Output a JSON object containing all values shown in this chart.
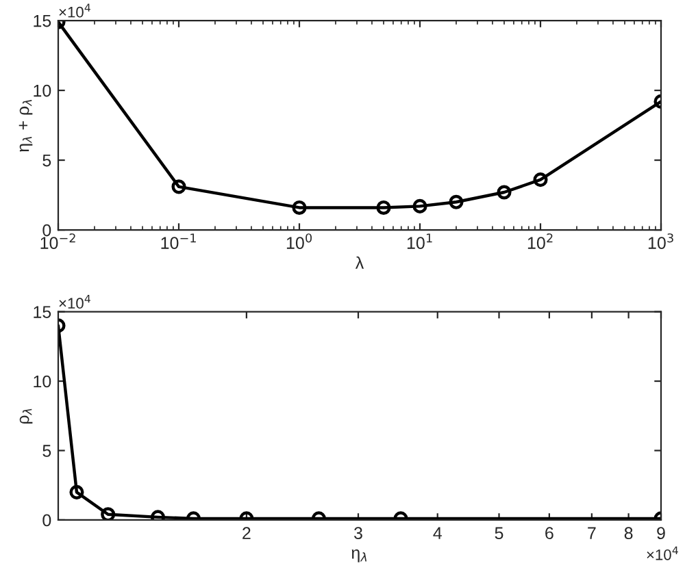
{
  "chart_data": [
    {
      "type": "line",
      "xlabel": "λ",
      "ylabel": "η$_{λ}$ + ρ$_{λ}$",
      "log": "x",
      "marker": "circle",
      "line_style": "solid",
      "grid": false,
      "legend": false,
      "annotations": [
        "×10$^{4}$"
      ],
      "x": [
        0.01,
        0.1,
        1,
        5,
        10,
        20,
        50,
        100,
        1000
      ],
      "series": [
        {
          "color": "#000000",
          "values": [
            14.9,
            3.1,
            1.6,
            1.6,
            1.7,
            2.0,
            2.7,
            3.6,
            9.2
          ]
        }
      ],
      "xlim": [
        0.01,
        1000
      ],
      "xticks": [
        {
          "value": 0.01,
          "label": "10$^{−2}$"
        },
        {
          "value": 0.1,
          "label": "10$^{−1}$"
        },
        {
          "value": 1,
          "label": "10$^{0}$"
        },
        {
          "value": 10,
          "label": "10$^{1}$"
        },
        {
          "value": 100,
          "label": "10$^{2}$"
        },
        {
          "value": 1000,
          "label": "10$^{3}$"
        }
      ],
      "ylim": [
        0,
        15
      ],
      "yticks": [
        0,
        5,
        10,
        15
      ]
    },
    {
      "type": "line",
      "xlabel": "η$_{λ}$",
      "ylabel": "ρ$_{λ}$",
      "log": "x",
      "marker": "circle",
      "line_style": "solid",
      "grid": false,
      "legend": false,
      "annotations": [
        "×10$^{4}$",
        "×10$^{4}$"
      ],
      "x": [
        1.01,
        1.08,
        1.21,
        1.45,
        1.65,
        2.0,
        2.6,
        3.5,
        9
      ],
      "series": [
        {
          "color": "#000000",
          "values": [
            14,
            2,
            0.4,
            0.2,
            0.1,
            0.1,
            0.1,
            0.1,
            0.1
          ]
        }
      ],
      "xlim": [
        1.01,
        9
      ],
      "xticks": [
        2,
        3,
        4,
        5,
        6,
        7,
        8,
        9
      ],
      "ylim": [
        0,
        15
      ],
      "yticks": [
        0,
        5,
        10,
        15
      ]
    }
  ]
}
